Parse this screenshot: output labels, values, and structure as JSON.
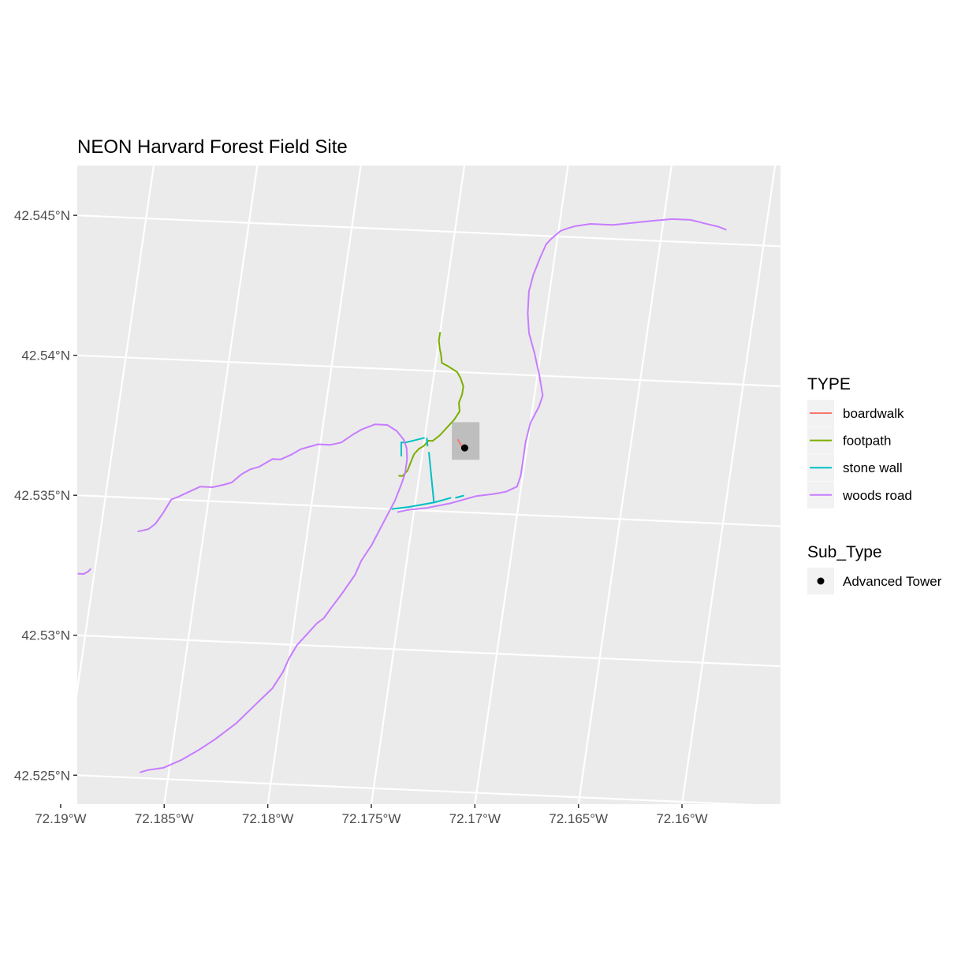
{
  "chart_data": {
    "type": "map",
    "title": "NEON Harvard Forest Field Site",
    "x_ticks": [
      "72.19°W",
      "72.185°W",
      "72.18°W",
      "72.175°W",
      "72.17°W",
      "72.165°W",
      "72.16°W"
    ],
    "y_ticks": [
      "42.545°N",
      "42.54°N",
      "42.535°N",
      "42.53°N",
      "42.525°N"
    ],
    "x_tick_values": [
      -72.19,
      -72.185,
      -72.18,
      -72.175,
      -72.17,
      -72.165,
      -72.16
    ],
    "y_tick_values": [
      42.545,
      42.54,
      42.535,
      42.53,
      42.525
    ],
    "xlim": [
      -72.1927,
      -72.1585
    ],
    "ylim": [
      42.5244,
      42.5473
    ],
    "grid": true,
    "panel_background": "#ebebeb",
    "grid_color": "#ffffff",
    "legend_position": "right",
    "legend_type": {
      "title": "TYPE",
      "entries": [
        {
          "label": "boardwalk",
          "color": "#f8766d"
        },
        {
          "label": "footpath",
          "color": "#7cae00"
        },
        {
          "label": "stone wall",
          "color": "#00bfc4"
        },
        {
          "label": "woods road",
          "color": "#c77cff"
        }
      ]
    },
    "legend_subtype": {
      "title": "Sub_Type",
      "entries": [
        {
          "label": "Advanced Tower",
          "color": "#000000"
        }
      ]
    },
    "aoi_box": {
      "x0": -72.1738,
      "x1": -72.1722,
      "y0": 42.5369,
      "y1": 42.5382,
      "fill": "#bebebe"
    },
    "points": [
      {
        "label": "Advanced Tower",
        "x": -72.173,
        "y": 42.5373
      }
    ],
    "lines": [
      {
        "type": "boardwalk",
        "coords": [
          [
            -72.1734,
            42.5376
          ],
          [
            -72.1731,
            42.5373
          ]
        ]
      },
      {
        "type": "footpath",
        "coords": [
          [
            -72.175,
            42.5414
          ],
          [
            -72.175,
            42.5411
          ],
          [
            -72.1749,
            42.5408
          ],
          [
            -72.1748,
            42.5406
          ],
          [
            -72.1747,
            42.5403
          ],
          [
            -72.1744,
            42.5402
          ],
          [
            -72.1739,
            42.54
          ],
          [
            -72.1737,
            42.5398
          ],
          [
            -72.1735,
            42.5395
          ],
          [
            -72.1735,
            42.5392
          ],
          [
            -72.1736,
            42.5389
          ],
          [
            -72.1735,
            42.5386
          ],
          [
            -72.1737,
            42.5383
          ],
          [
            -72.174,
            42.538
          ],
          [
            -72.1743,
            42.5377
          ],
          [
            -72.1746,
            42.5375
          ],
          [
            -72.1748,
            42.5375
          ],
          [
            -72.175,
            42.5373
          ],
          [
            -72.1752,
            42.5372
          ],
          [
            -72.1754,
            42.537
          ],
          [
            -72.1755,
            42.5367
          ],
          [
            -72.1756,
            42.5364
          ],
          [
            -72.1758,
            42.5362
          ],
          [
            -72.176,
            42.5362
          ]
        ]
      },
      {
        "type": "stone wall",
        "coords": [
          [
            -72.176,
            42.5369
          ],
          [
            -72.1761,
            42.5374
          ],
          [
            -72.1759,
            42.5374
          ],
          [
            -72.175,
            42.5376
          ]
        ]
      },
      {
        "type": "stone wall",
        "coords": [
          [
            -72.1749,
            42.5376
          ],
          [
            -72.1748,
            42.5373
          ]
        ]
      },
      {
        "type": "stone wall",
        "coords": [
          [
            -72.1747,
            42.5371
          ],
          [
            -72.1741,
            42.5353
          ],
          [
            -72.1753,
            42.5351
          ],
          [
            -72.1761,
            42.535
          ]
        ]
      },
      {
        "type": "stone wall",
        "coords": [
          [
            -72.1741,
            42.5353
          ],
          [
            -72.1733,
            42.5355
          ]
        ]
      },
      {
        "type": "stone wall",
        "coords": [
          [
            -72.1731,
            42.5355
          ],
          [
            -72.1727,
            42.5356
          ]
        ]
      },
      {
        "type": "woods road",
        "coords": [
          [
            -72.1882,
            42.5338
          ],
          [
            -72.1877,
            42.5339
          ],
          [
            -72.1874,
            42.5341
          ],
          [
            -72.1871,
            42.5345
          ],
          [
            -72.1868,
            42.535
          ],
          [
            -72.1865,
            42.5351
          ],
          [
            -72.186,
            42.5353
          ],
          [
            -72.1855,
            42.5355
          ],
          [
            -72.1849,
            42.5355
          ],
          [
            -72.1844,
            42.5356
          ],
          [
            -72.184,
            42.5357
          ],
          [
            -72.1836,
            42.536
          ],
          [
            -72.1832,
            42.5362
          ],
          [
            -72.1828,
            42.5363
          ],
          [
            -72.1822,
            42.5366
          ],
          [
            -72.1818,
            42.5366
          ],
          [
            -72.1813,
            42.5368
          ],
          [
            -72.1809,
            42.537
          ],
          [
            -72.1801,
            42.5372
          ],
          [
            -72.1795,
            42.5372
          ],
          [
            -72.179,
            42.5373
          ],
          [
            -72.1785,
            42.5376
          ],
          [
            -72.1781,
            42.5378
          ],
          [
            -72.1775,
            42.538
          ],
          [
            -72.1769,
            42.538
          ],
          [
            -72.1764,
            42.5378
          ],
          [
            -72.176,
            42.5375
          ],
          [
            -72.1758,
            42.5372
          ],
          [
            -72.1757,
            42.5368
          ],
          [
            -72.1757,
            42.5363
          ],
          [
            -72.1758,
            42.5359
          ],
          [
            -72.176,
            42.5353
          ],
          [
            -72.1764,
            42.5345
          ],
          [
            -72.1768,
            42.5337
          ],
          [
            -72.1772,
            42.5331
          ],
          [
            -72.1774,
            42.5326
          ],
          [
            -72.1779,
            42.5319
          ],
          [
            -72.1783,
            42.5314
          ],
          [
            -72.1786,
            42.531
          ],
          [
            -72.1789,
            42.5308
          ],
          [
            -72.1794,
            42.5303
          ],
          [
            -72.1797,
            42.53
          ],
          [
            -72.18,
            42.5295
          ],
          [
            -72.1802,
            42.529
          ],
          [
            -72.1806,
            42.5284
          ],
          [
            -72.1813,
            42.5278
          ],
          [
            -72.1821,
            42.5271
          ],
          [
            -72.183,
            42.5265
          ],
          [
            -72.1837,
            42.5261
          ],
          [
            -72.1845,
            42.5257
          ],
          [
            -72.1853,
            42.5254
          ],
          [
            -72.186,
            42.5253
          ],
          [
            -72.1864,
            42.5252
          ]
        ]
      },
      {
        "type": "woods road",
        "coords": [
          [
            -72.1758,
            42.5349
          ],
          [
            -72.1753,
            42.535
          ],
          [
            -72.1744,
            42.5351
          ],
          [
            -72.1733,
            42.5353
          ],
          [
            -72.1721,
            42.5356
          ],
          [
            -72.1713,
            42.5357
          ],
          [
            -72.1707,
            42.5358
          ],
          [
            -72.1702,
            42.536
          ],
          [
            -72.1701,
            42.5364
          ],
          [
            -72.1701,
            42.5371
          ],
          [
            -72.1701,
            42.5376
          ],
          [
            -72.17,
            42.5383
          ],
          [
            -72.1697,
            42.5389
          ],
          [
            -72.1696,
            42.5393
          ],
          [
            -72.1699,
            42.54
          ],
          [
            -72.1703,
            42.5408
          ],
          [
            -72.1707,
            42.5415
          ],
          [
            -72.1709,
            42.5422
          ],
          [
            -72.171,
            42.543
          ],
          [
            -72.1709,
            42.5436
          ],
          [
            -72.1707,
            42.5442
          ],
          [
            -72.1705,
            42.5447
          ],
          [
            -72.1703,
            42.5449
          ],
          [
            -72.1699,
            42.5452
          ],
          [
            -72.1696,
            42.5453
          ],
          [
            -72.1692,
            42.5454
          ],
          [
            -72.1685,
            42.5455
          ],
          [
            -72.1674,
            42.5455
          ],
          [
            -72.1665,
            42.5456
          ],
          [
            -72.1656,
            42.5457
          ],
          [
            -72.1646,
            42.5458
          ],
          [
            -72.1637,
            42.5458
          ],
          [
            -72.163,
            42.5457
          ],
          [
            -72.1623,
            42.5456
          ],
          [
            -72.1619,
            42.5455
          ]
        ]
      },
      {
        "type": "woods road",
        "coords": [
          [
            -72.1908,
            42.5322
          ],
          [
            -72.1905,
            42.5322
          ],
          [
            -72.1903,
            42.5323
          ],
          [
            -72.1902,
            42.5324
          ]
        ]
      }
    ]
  }
}
